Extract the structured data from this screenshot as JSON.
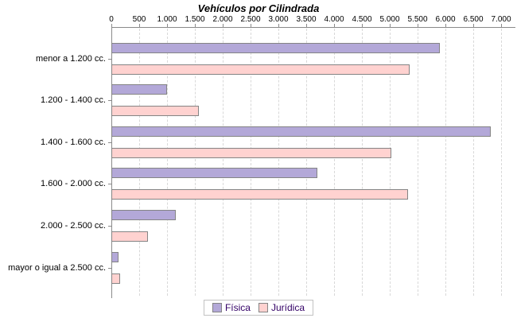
{
  "chart_data": {
    "type": "bar",
    "orientation": "horizontal",
    "title": "Vehículos por Cilindrada",
    "categories": [
      "menor a 1.200 cc.",
      "1.200 - 1.400 cc.",
      "1.400 - 1.600 cc.",
      "1.600 - 2.000 cc.",
      "2.000 - 2.500 cc.",
      "mayor o igual a 2.500 cc."
    ],
    "series": [
      {
        "name": "Física",
        "color": "#b3a8d8",
        "values": [
          5900,
          1000,
          6820,
          3700,
          1150,
          130
        ]
      },
      {
        "name": "Jurídica",
        "color": "#ffd2d0",
        "values": [
          5350,
          1575,
          5030,
          5330,
          650,
          160
        ]
      }
    ],
    "xlim": [
      0,
      7000
    ],
    "x_tick_step": 500,
    "x_tick_labels": [
      "0",
      "500",
      "1.000",
      "1.500",
      "2.000",
      "2.500",
      "3.000",
      "3.500",
      "4.000",
      "4.500",
      "5.000",
      "5.500",
      "6.000",
      "6.500",
      "7.000"
    ],
    "grid": "vertical-dashed",
    "legend_position": "bottom"
  },
  "colors": {
    "axis": "#8a8a8a",
    "grid": "#d8d8d8",
    "bar_border": "#848484",
    "legend_text": "#330066",
    "legend_border": "#c2c2c2",
    "title_text": "#000000"
  }
}
